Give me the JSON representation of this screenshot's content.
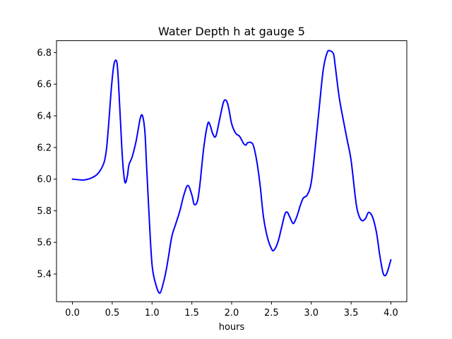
{
  "chart_data": {
    "type": "line",
    "title": "Water Depth h at gauge 5",
    "xlabel": "hours",
    "ylabel": "",
    "xlim": [
      -0.2,
      4.2
    ],
    "ylim": [
      5.225,
      6.875
    ],
    "xticks": [
      0.0,
      0.5,
      1.0,
      1.5,
      2.0,
      2.5,
      3.0,
      3.5,
      4.0
    ],
    "xtick_labels": [
      "0.0",
      "0.5",
      "1.0",
      "1.5",
      "2.0",
      "2.5",
      "3.0",
      "3.5",
      "4.0"
    ],
    "yticks": [
      5.4,
      5.6,
      5.8,
      6.0,
      6.2,
      6.4,
      6.6,
      6.8
    ],
    "ytick_labels": [
      "5.4",
      "5.6",
      "5.8",
      "6.0",
      "6.2",
      "6.4",
      "6.6",
      "6.8"
    ],
    "grid": false,
    "line_color": "#0000ff",
    "series": [
      {
        "x": [
          0.0,
          0.1,
          0.15,
          0.2,
          0.25,
          0.3,
          0.35,
          0.4,
          0.43,
          0.46,
          0.49,
          0.52,
          0.55,
          0.57,
          0.6,
          0.63,
          0.66,
          0.69,
          0.71,
          0.75,
          0.8,
          0.85,
          0.88,
          0.91,
          0.93,
          0.96,
          1.0,
          1.05,
          1.1,
          1.15,
          1.18,
          1.21,
          1.25,
          1.3,
          1.35,
          1.4,
          1.45,
          1.5,
          1.53,
          1.57,
          1.6,
          1.65,
          1.7,
          1.73,
          1.76,
          1.8,
          1.85,
          1.9,
          1.94,
          1.97,
          2.0,
          2.05,
          2.1,
          2.15,
          2.18,
          2.2,
          2.25,
          2.28,
          2.32,
          2.36,
          2.4,
          2.45,
          2.5,
          2.53,
          2.58,
          2.63,
          2.67,
          2.7,
          2.73,
          2.77,
          2.8,
          2.83,
          2.86,
          2.9,
          2.95,
          3.0,
          3.05,
          3.1,
          3.15,
          3.2,
          3.24,
          3.28,
          3.3,
          3.35,
          3.4,
          3.45,
          3.5,
          3.55,
          3.58,
          3.63,
          3.68,
          3.72,
          3.77,
          3.82,
          3.86,
          3.9,
          3.93,
          3.96,
          4.0
        ],
        "y": [
          6.0,
          5.995,
          5.995,
          6.0,
          6.01,
          6.025,
          6.055,
          6.11,
          6.2,
          6.38,
          6.58,
          6.72,
          6.75,
          6.68,
          6.4,
          6.12,
          5.98,
          6.02,
          6.09,
          6.14,
          6.24,
          6.38,
          6.4,
          6.3,
          6.1,
          5.8,
          5.46,
          5.33,
          5.28,
          5.36,
          5.43,
          5.52,
          5.64,
          5.72,
          5.8,
          5.9,
          5.96,
          5.9,
          5.84,
          5.86,
          5.96,
          6.2,
          6.35,
          6.34,
          6.29,
          6.27,
          6.38,
          6.49,
          6.49,
          6.43,
          6.35,
          6.29,
          6.27,
          6.225,
          6.215,
          6.23,
          6.23,
          6.2,
          6.1,
          5.95,
          5.76,
          5.63,
          5.56,
          5.55,
          5.6,
          5.7,
          5.78,
          5.79,
          5.76,
          5.72,
          5.74,
          5.78,
          5.83,
          5.88,
          5.9,
          5.98,
          6.2,
          6.45,
          6.69,
          6.8,
          6.81,
          6.79,
          6.72,
          6.52,
          6.38,
          6.25,
          6.12,
          5.9,
          5.8,
          5.74,
          5.75,
          5.79,
          5.76,
          5.66,
          5.52,
          5.41,
          5.39,
          5.42,
          5.49
        ]
      }
    ]
  }
}
